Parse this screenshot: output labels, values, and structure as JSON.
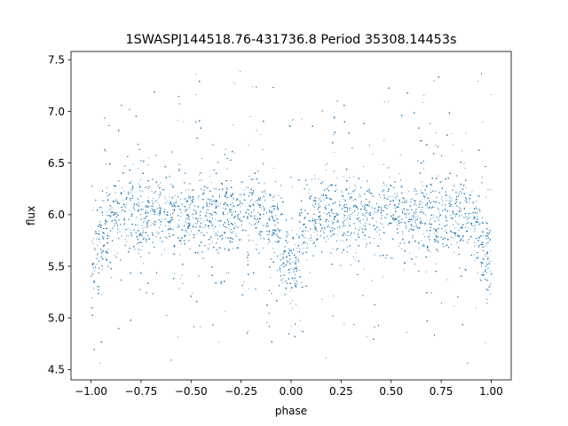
{
  "chart_data": {
    "type": "scatter",
    "title": "1SWASPJ144518.76-431736.8 Period 35308.14453s",
    "xlabel": "phase",
    "ylabel": "flux",
    "xlim": [
      -1.1,
      1.1
    ],
    "ylim": [
      4.4,
      7.58
    ],
    "xticks": [
      {
        "value": -1.0,
        "label": "−1.00"
      },
      {
        "value": -0.75,
        "label": "−0.75"
      },
      {
        "value": -0.5,
        "label": "−0.50"
      },
      {
        "value": -0.25,
        "label": "−0.25"
      },
      {
        "value": 0.0,
        "label": "0.00"
      },
      {
        "value": 0.25,
        "label": "0.25"
      },
      {
        "value": 0.5,
        "label": "0.50"
      },
      {
        "value": 0.75,
        "label": "0.75"
      },
      {
        "value": 1.0,
        "label": "1.00"
      }
    ],
    "yticks": [
      {
        "value": 4.5,
        "label": "4.5"
      },
      {
        "value": 5.0,
        "label": "5.0"
      },
      {
        "value": 5.5,
        "label": "5.5"
      },
      {
        "value": 6.0,
        "label": "6.0"
      },
      {
        "value": 6.5,
        "label": "6.5"
      },
      {
        "value": 7.0,
        "label": "7.0"
      },
      {
        "value": 7.5,
        "label": "7.5"
      }
    ],
    "grid": false,
    "legend": "none",
    "point_color": "#1f77b4",
    "series": [
      {
        "x_range": [
          -1.0,
          1.0
        ],
        "baseline_flux": 6.0,
        "band_spread": 0.18,
        "eclipses": [
          {
            "phase": -1.0,
            "min_flux": 5.3,
            "width": 0.045
          },
          {
            "phase": 0.0,
            "min_flux": 5.25,
            "width": 0.045
          },
          {
            "phase": 1.0,
            "min_flux": 5.3,
            "width": 0.045
          }
        ],
        "approx_point_count": 24000
      }
    ]
  }
}
